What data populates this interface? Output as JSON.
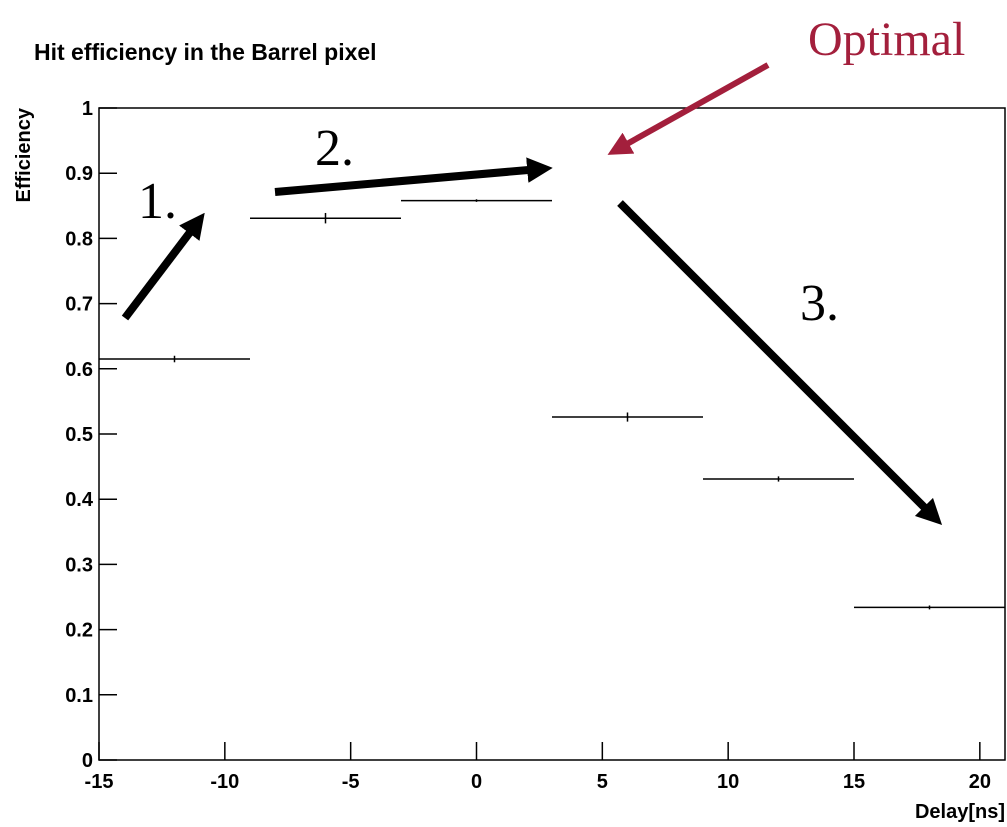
{
  "chart_data": {
    "type": "histogram",
    "title": "Hit efficiency in the Barrel pixel",
    "xlabel": "Delay[ns]",
    "ylabel": "Efficiency",
    "bins": [
      -15,
      -9,
      -3,
      3,
      9,
      15,
      21
    ],
    "values": [
      0.615,
      0.831,
      0.858,
      0.526,
      0.431,
      0.234
    ],
    "errors": [
      0.005,
      0.008,
      0.002,
      0.007,
      0.004,
      0.003
    ],
    "color": "#000000",
    "xlim": [
      -15,
      21
    ],
    "ylim": [
      0,
      1
    ],
    "xticks": [
      -15,
      -10,
      -5,
      0,
      5,
      10,
      15,
      20
    ],
    "yticks": [
      0,
      0.1,
      0.2,
      0.3,
      0.4,
      0.5,
      0.6,
      0.7,
      0.8,
      0.9,
      1
    ],
    "annotations": [
      "1.",
      "2.",
      "3.",
      "Optimal"
    ]
  }
}
